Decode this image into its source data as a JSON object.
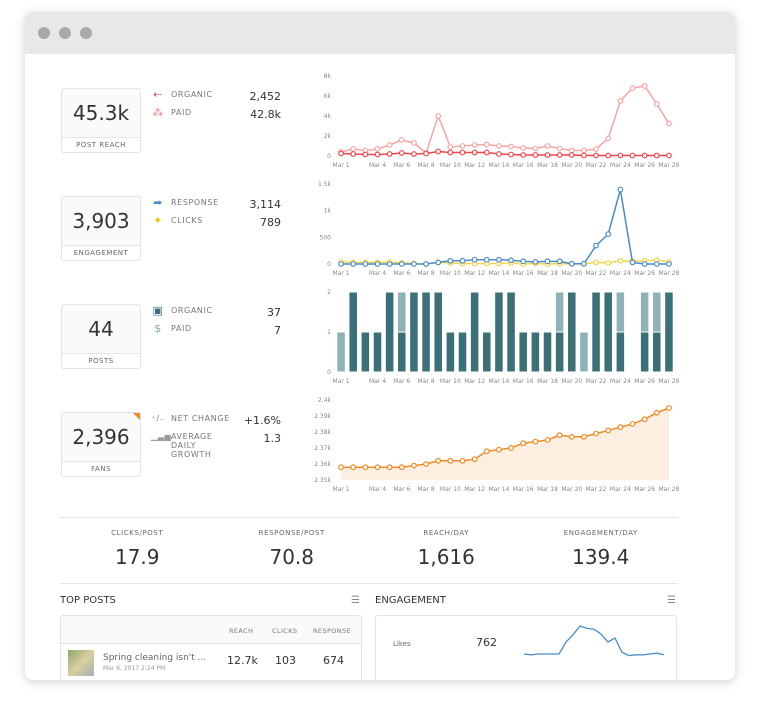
{
  "window": {
    "dots": 3
  },
  "metrics": [
    {
      "value": "45.3k",
      "label": "POST REACH",
      "items": [
        {
          "icon": "organic-arrow-icon",
          "icon_glyph": "⇠",
          "color": "#f0444b",
          "name": "ORGANIC",
          "value": "2,452"
        },
        {
          "icon": "paid-network-icon",
          "icon_glyph": "⁂",
          "color": "#f47b7b",
          "name": "PAID",
          "value": "42.8k"
        }
      ]
    },
    {
      "value": "3,903",
      "label": "ENGAGEMENT",
      "items": [
        {
          "icon": "response-arrow-icon",
          "icon_glyph": "➦",
          "color": "#4a8cc9",
          "name": "RESPONSE",
          "value": "3,114"
        },
        {
          "icon": "click-cursor-icon",
          "icon_glyph": "✦",
          "color": "#f2c318",
          "name": "CLICKS",
          "value": "789"
        }
      ]
    },
    {
      "value": "44",
      "label": "POSTS",
      "items": [
        {
          "icon": "organic-post-icon",
          "icon_glyph": "▣",
          "color": "#3c7078",
          "name": "ORGANIC",
          "value": "37"
        },
        {
          "icon": "paid-post-icon",
          "icon_glyph": "$",
          "color": "#7fa9ae",
          "name": "PAID",
          "value": "7"
        }
      ]
    },
    {
      "value": "2,396",
      "label": "FANS",
      "items": [
        {
          "icon": "plus-minus-icon",
          "icon_glyph": "⁺/₋",
          "color": "#777",
          "name": "NET CHANGE",
          "value": "+1.6%"
        },
        {
          "icon": "growth-bars-icon",
          "icon_glyph": "▁▃▅",
          "color": "#999",
          "name": "AVERAGE DAILY GROWTH",
          "value": "1.3"
        }
      ]
    }
  ],
  "chart_data": [
    {
      "type": "line",
      "x": [
        "Mar 1",
        "Mar 2",
        "Mar 3",
        "Mar 4",
        "Mar 5",
        "Mar 6",
        "Mar 7",
        "Mar 8",
        "Mar 9",
        "Mar 10",
        "Mar 11",
        "Mar 12",
        "Mar 13",
        "Mar 14",
        "Mar 15",
        "Mar 16",
        "Mar 17",
        "Mar 18",
        "Mar 19",
        "Mar 20",
        "Mar 21",
        "Mar 22",
        "Mar 23",
        "Mar 24",
        "Mar 25",
        "Mar 26",
        "Mar 27",
        "Mar 28"
      ],
      "xticks": [
        "Mar 1",
        "Mar 4",
        "Mar 6",
        "Mar 8",
        "Mar 10",
        "Mar 12",
        "Mar 14",
        "Mar 16",
        "Mar 18",
        "Mar 20",
        "Mar 22",
        "Mar 24",
        "Mar 26",
        "Mar 28"
      ],
      "yticks": [
        "0",
        "2k",
        "4k",
        "6k",
        "8k"
      ],
      "ylim": [
        0,
        8000
      ],
      "series": [
        {
          "color": "#f9a3a3",
          "values": [
            400,
            700,
            550,
            700,
            1100,
            1600,
            1300,
            300,
            4000,
            900,
            1000,
            1100,
            1150,
            1000,
            950,
            800,
            750,
            1000,
            750,
            550,
            550,
            700,
            1750,
            5500,
            6800,
            7000,
            5200,
            3250
          ]
        },
        {
          "color": "#f0444b",
          "values": [
            250,
            200,
            150,
            150,
            200,
            300,
            200,
            250,
            450,
            350,
            350,
            350,
            350,
            200,
            150,
            100,
            100,
            100,
            100,
            100,
            50,
            50,
            50,
            50,
            50,
            50,
            50,
            50
          ]
        }
      ]
    },
    {
      "type": "line",
      "yticks": [
        "0",
        "500",
        "1k",
        "1.5k"
      ],
      "ylim": [
        0,
        1500
      ],
      "series": [
        {
          "color": "#f5d547",
          "values": [
            40,
            30,
            30,
            30,
            40,
            20,
            10,
            0,
            30,
            20,
            10,
            10,
            10,
            10,
            20,
            0,
            10,
            0,
            10,
            0,
            0,
            30,
            20,
            60,
            50,
            60,
            70,
            40
          ]
        },
        {
          "color": "#4a8cc9",
          "values": [
            0,
            0,
            0,
            0,
            0,
            0,
            0,
            0,
            30,
            60,
            60,
            80,
            80,
            80,
            70,
            50,
            40,
            50,
            50,
            5,
            5,
            345,
            560,
            1395,
            30,
            0,
            0,
            0
          ]
        }
      ]
    },
    {
      "type": "bar",
      "stacked": true,
      "yticks": [
        "0",
        "1",
        "2"
      ],
      "ylim": [
        0,
        2
      ],
      "series": [
        {
          "color": "#3c7078",
          "values": [
            0,
            2,
            1,
            1,
            2,
            1,
            2,
            2,
            2,
            1,
            1,
            2,
            1,
            2,
            2,
            1,
            1,
            1,
            1,
            2,
            0,
            2,
            2,
            1,
            0,
            1,
            1,
            2
          ]
        },
        {
          "color": "#8fb2b6",
          "values": [
            1,
            0,
            0,
            0,
            0,
            1,
            0,
            0,
            0,
            0,
            0,
            0,
            0,
            0,
            0,
            0,
            0,
            0,
            1,
            0,
            1,
            0,
            0,
            1,
            0,
            1,
            1,
            0
          ]
        }
      ]
    },
    {
      "type": "area",
      "yticks": [
        "2.35k",
        "2.36k",
        "2.37k",
        "2.38k",
        "2.39k",
        "2.4k"
      ],
      "ylim": [
        2350,
        2400
      ],
      "series": [
        {
          "color": "#f08a24",
          "fill": "#fdeee2",
          "values": [
            2358,
            2358,
            2358,
            2358,
            2358,
            2358,
            2359,
            2360,
            2362,
            2362,
            2362,
            2363,
            2368,
            2369,
            2370,
            2373,
            2374,
            2375,
            2378,
            2377,
            2377,
            2379,
            2381,
            2383,
            2385,
            2388,
            2392,
            2395
          ]
        }
      ]
    }
  ],
  "summary": [
    {
      "label": "CLICKS/POST",
      "value": "17.9"
    },
    {
      "label": "RESPONSE/POST",
      "value": "70.8"
    },
    {
      "label": "REACH/DAY",
      "value": "1,616"
    },
    {
      "label": "ENGAGEMENT/DAY",
      "value": "139.4"
    }
  ],
  "top_posts": {
    "title": "TOP POSTS",
    "menu_icon": "list-icon",
    "columns": [
      "REACH",
      "CLICKS",
      "RESPONSE"
    ],
    "rows": [
      {
        "text": "Spring cleaning isn't ...",
        "date": "Mar 6, 2017 2:24 PM",
        "reach": "12.7k",
        "clicks": "103",
        "response": "674"
      }
    ]
  },
  "engagement": {
    "title": "ENGAGEMENT",
    "menu_icon": "list-icon",
    "rows": [
      {
        "label": "Likes",
        "value": "762",
        "trend": [
          10,
          9,
          10,
          10,
          10,
          10,
          25,
          34,
          45,
          42,
          41,
          35,
          25,
          30,
          12,
          8,
          9,
          9,
          10,
          11,
          9
        ],
        "color": "#4a8cc9"
      }
    ]
  }
}
